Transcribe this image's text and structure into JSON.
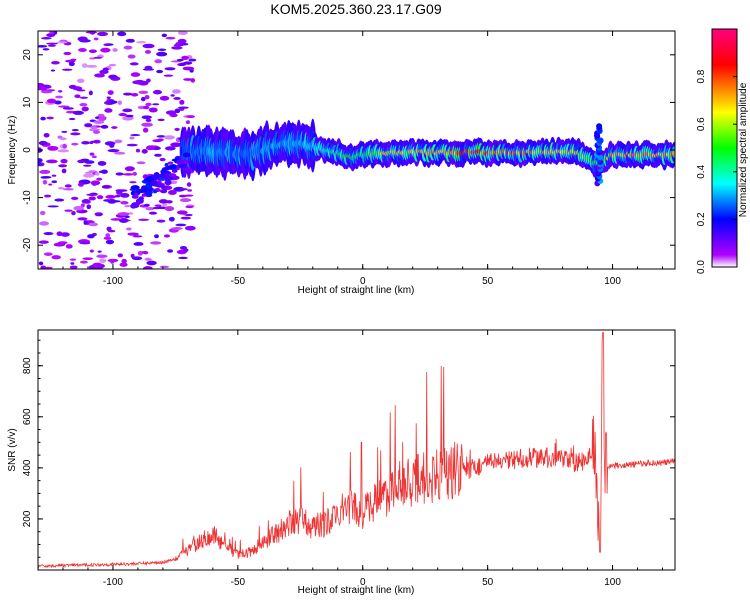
{
  "title": "KOM5.2025.360.23.17.G09",
  "chart_data": [
    {
      "type": "heatmap",
      "xlabel": "Height of straight line (km)",
      "ylabel": "Frequency (Hz)",
      "xlim": [
        -130,
        125
      ],
      "ylim": [
        -25,
        25
      ],
      "xticks": [
        -100,
        -50,
        0,
        50,
        100
      ],
      "yticks": [
        -20,
        -10,
        0,
        10,
        20
      ],
      "colorbar": {
        "label": "Normalized spectral amplitude",
        "range": [
          0,
          1
        ],
        "ticks": [
          "0.0",
          "0.2",
          "0.4",
          "0.6",
          "0.8"
        ],
        "colors": [
          "#ffffff",
          "#b000ff",
          "#0000ff",
          "#00ffff",
          "#00ff00",
          "#ffff00",
          "#ff0000",
          "#ff0080"
        ]
      },
      "ridge": [
        {
          "x": -72,
          "f": 0.0,
          "amp": 0.25
        },
        {
          "x": -60,
          "f": -0.5,
          "amp": 0.35
        },
        {
          "x": -45,
          "f": -1.0,
          "amp": 0.3
        },
        {
          "x": -35,
          "f": 1.0,
          "amp": 0.35
        },
        {
          "x": -25,
          "f": 1.5,
          "amp": 0.35
        },
        {
          "x": -15,
          "f": 0.0,
          "amp": 0.45
        },
        {
          "x": -5,
          "f": -1.5,
          "amp": 0.55
        },
        {
          "x": 0,
          "f": -1.0,
          "amp": 0.5
        },
        {
          "x": 10,
          "f": -0.5,
          "amp": 0.7
        },
        {
          "x": 25,
          "f": -0.5,
          "amp": 0.75
        },
        {
          "x": 40,
          "f": -0.5,
          "amp": 0.85
        },
        {
          "x": 55,
          "f": -0.5,
          "amp": 0.9
        },
        {
          "x": 70,
          "f": -0.5,
          "amp": 0.75
        },
        {
          "x": 85,
          "f": -0.5,
          "amp": 0.7
        },
        {
          "x": 95,
          "f": -3.0,
          "amp": 0.5
        },
        {
          "x": 100,
          "f": -1.0,
          "amp": 0.75
        },
        {
          "x": 115,
          "f": -1.0,
          "amp": 0.8
        },
        {
          "x": 125,
          "f": -1.0,
          "amp": 0.75
        }
      ]
    },
    {
      "type": "line",
      "xlabel": "Height of straight line (km)",
      "ylabel": "SNR (v/v)",
      "xlim": [
        -130,
        125
      ],
      "ylim": [
        0,
        940
      ],
      "xticks": [
        -100,
        -50,
        0,
        50,
        100
      ],
      "yticks": [
        200,
        400,
        600,
        800
      ],
      "color": "#ee3333",
      "series": [
        {
          "x": [
            -130,
            -120,
            -110,
            -100,
            -90,
            -80,
            -75,
            -70,
            -65,
            -60,
            -55,
            -50,
            -45,
            -40,
            -35,
            -30,
            -25,
            -20,
            -15,
            -10,
            -5,
            0,
            5,
            10,
            15,
            20,
            25,
            30,
            35,
            40,
            45,
            50,
            55,
            60,
            65,
            70,
            75,
            80,
            85,
            90,
            93,
            95,
            96,
            97,
            98,
            100,
            105,
            110,
            115,
            120,
            125
          ],
          "values": [
            15,
            18,
            20,
            22,
            25,
            30,
            45,
            80,
            110,
            140,
            90,
            60,
            70,
            110,
            140,
            180,
            200,
            170,
            180,
            220,
            250,
            220,
            270,
            300,
            330,
            350,
            360,
            370,
            380,
            390,
            400,
            420,
            420,
            430,
            440,
            440,
            440,
            430,
            420,
            430,
            500,
            100,
            930,
            420,
            410,
            410,
            410,
            415,
            420,
            420,
            425
          ]
        }
      ]
    }
  ]
}
